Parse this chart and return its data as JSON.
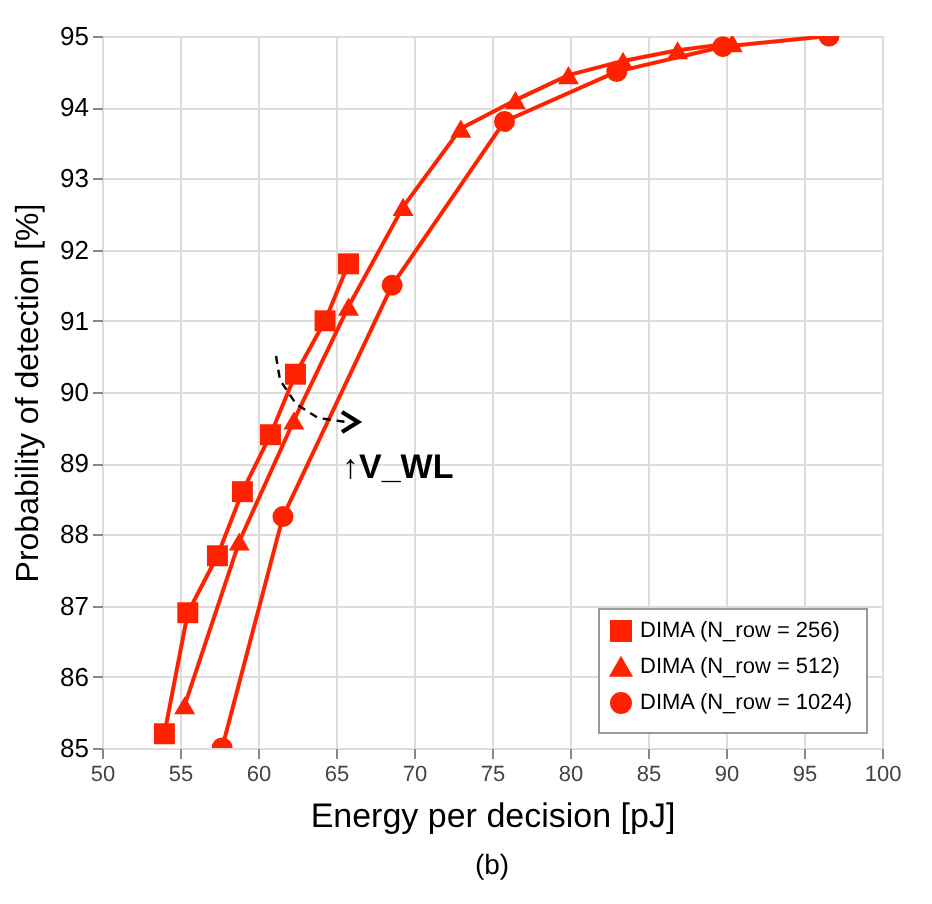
{
  "chart_data": {
    "type": "line",
    "xlabel": "Energy per decision [pJ]",
    "ylabel": "Probability of detection [%]",
    "series": [
      {
        "name": "DIMA (N_row = 256)",
        "color": "#ff2200",
        "marker": "square",
        "x": [
          54.0,
          55.5,
          57.4,
          59.0,
          60.8,
          62.4,
          64.3,
          65.8
        ],
        "values": [
          85.2,
          86.9,
          87.7,
          88.6,
          89.4,
          90.25,
          91.0,
          91.8
        ]
      },
      {
        "name": "DIMA (N_row = 512)",
        "color": "#ff2200",
        "marker": "triangle",
        "x": [
          55.3,
          58.8,
          62.3,
          65.8,
          69.3,
          73.0,
          76.5,
          79.9,
          83.4,
          86.9,
          90.4
        ],
        "values": [
          85.6,
          87.9,
          89.6,
          91.2,
          92.6,
          93.7,
          94.1,
          94.45,
          94.65,
          94.8,
          94.9
        ]
      },
      {
        "name": "DIMA (N_row = 1024)",
        "color": "#ff2200",
        "marker": "circle",
        "x": [
          57.7,
          61.6,
          68.6,
          75.8,
          83.0,
          89.8,
          96.6
        ],
        "values": [
          85.0,
          88.25,
          91.5,
          93.8,
          94.5,
          94.85,
          95.0
        ]
      }
    ],
    "xlim": [
      50,
      100
    ],
    "xticks": [
      50,
      55,
      60,
      65,
      70,
      75,
      80,
      85,
      90,
      95,
      100
    ],
    "ylim": [
      85,
      95
    ],
    "yticks": [
      85,
      86,
      87,
      88,
      89,
      90,
      91,
      92,
      93,
      94,
      95
    ],
    "grid": true,
    "legend": "bottom right",
    "line_style": "solid",
    "annotations": [
      "↑V_WL",
      "(b)"
    ]
  }
}
